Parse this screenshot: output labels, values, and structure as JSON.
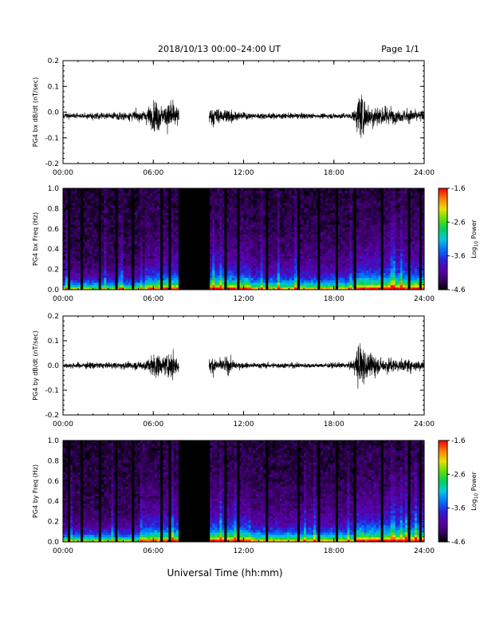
{
  "header": {
    "title": "2018/10/13  00:00–24:00 UT",
    "page": "Page 1/1"
  },
  "footer": {
    "xlabel": "Universal Time (hh:mm)"
  },
  "colorbar": {
    "label": "Log10 Power",
    "label_base": "Log",
    "label_sub": "10",
    "label_rest": " Power",
    "ticks": [
      "-1.6",
      "-2.6",
      "-3.6",
      "-4.6"
    ],
    "tick_values": [
      -1.6,
      -2.6,
      -3.6,
      -4.6
    ],
    "range": [
      -4.6,
      -1.6
    ],
    "colormap": [
      "#000000",
      "#3a0066",
      "#5a00a8",
      "#2a20d8",
      "#0070ff",
      "#00c8e0",
      "#00d060",
      "#60e000",
      "#e8e000",
      "#ff8000",
      "#ff0000"
    ]
  },
  "chart_data": [
    {
      "type": "line",
      "panel": "time-series",
      "ylabel": "PG4 bx dB/dt (nT/sec)",
      "xlim": [
        0,
        24
      ],
      "ylim": [
        -0.2,
        0.2
      ],
      "xticks": [
        "00:00",
        "06:00",
        "12:00",
        "18:00",
        "24:00"
      ],
      "xtick_values": [
        0,
        6,
        12,
        18,
        24
      ],
      "yticks": [
        "0.2",
        "0.1",
        "0.0",
        "-0.1",
        "-0.2"
      ],
      "ytick_values": [
        0.2,
        0.1,
        0.0,
        -0.1,
        -0.2
      ],
      "data_gap_hours": [
        7.7,
        9.7
      ],
      "envelope": {
        "x": [
          0,
          1,
          2,
          3,
          4,
          5,
          5.5,
          6,
          6.3,
          6.6,
          7,
          7.3,
          7.6,
          9.7,
          10,
          10.5,
          11,
          11.5,
          12,
          13,
          14,
          15,
          16,
          17,
          18,
          19,
          19.4,
          19.7,
          20,
          20.3,
          20.7,
          21,
          21.5,
          22,
          22.5,
          23,
          23.5,
          24
        ],
        "y": [
          0.02,
          0.02,
          0.025,
          0.02,
          0.03,
          0.035,
          0.05,
          0.09,
          0.12,
          0.06,
          0.1,
          0.11,
          0.06,
          0.05,
          0.07,
          0.04,
          0.06,
          0.03,
          0.025,
          0.02,
          0.02,
          0.02,
          0.02,
          0.015,
          0.02,
          0.02,
          0.04,
          0.2,
          0.13,
          0.08,
          0.1,
          0.06,
          0.07,
          0.05,
          0.04,
          0.05,
          0.04,
          0.04
        ]
      },
      "baseline": -0.015
    },
    {
      "type": "heatmap",
      "panel": "spectrogram",
      "ylabel": "PG4 bx Freq (Hz)",
      "xlim": [
        0,
        24
      ],
      "ylim": [
        0.0,
        1.0
      ],
      "xticks": [
        "00:00",
        "06:00",
        "12:00",
        "18:00",
        "24:00"
      ],
      "xtick_values": [
        0,
        6,
        12,
        18,
        24
      ],
      "yticks": [
        "1.0",
        "0.8",
        "0.6",
        "0.4",
        "0.2",
        "0.0"
      ],
      "ytick_values": [
        1.0,
        0.8,
        0.6,
        0.4,
        0.2,
        0.0
      ],
      "data_gap_hours": [
        7.7,
        9.7
      ],
      "vertical_gaps_hours": [
        0.4,
        1.25,
        2.45,
        3.55,
        4.65,
        6.55,
        7.1,
        10.8,
        11.65,
        13.55,
        15.65,
        17.0,
        18.2,
        19.4,
        21.2,
        23.0,
        23.75
      ],
      "color_range": [
        -4.6,
        -1.6
      ]
    },
    {
      "type": "line",
      "panel": "time-series",
      "ylabel": "PG4 by dB/dt (nT/sec)",
      "xlim": [
        0,
        24
      ],
      "ylim": [
        -0.2,
        0.2
      ],
      "xticks": [
        "00:00",
        "06:00",
        "12:00",
        "18:00",
        "24:00"
      ],
      "xtick_values": [
        0,
        6,
        12,
        18,
        24
      ],
      "yticks": [
        "0.2",
        "0.1",
        "0.0",
        "-0.1",
        "-0.2"
      ],
      "ytick_values": [
        0.2,
        0.1,
        0.0,
        -0.1,
        -0.2
      ],
      "data_gap_hours": [
        7.7,
        9.7
      ],
      "envelope": {
        "x": [
          0,
          1,
          2,
          3,
          4,
          5,
          5.5,
          6,
          6.3,
          6.6,
          7,
          7.3,
          7.6,
          9.7,
          10,
          10.5,
          11,
          11.5,
          12,
          13,
          14,
          15,
          16,
          17,
          18,
          19,
          19.4,
          19.7,
          20,
          20.3,
          20.7,
          21,
          21.5,
          22,
          22.5,
          23,
          23.5,
          24
        ],
        "y": [
          0.02,
          0.02,
          0.025,
          0.02,
          0.025,
          0.03,
          0.04,
          0.08,
          0.1,
          0.05,
          0.09,
          0.1,
          0.05,
          0.05,
          0.07,
          0.04,
          0.06,
          0.03,
          0.02,
          0.02,
          0.02,
          0.02,
          0.02,
          0.015,
          0.02,
          0.02,
          0.06,
          0.2,
          0.14,
          0.07,
          0.09,
          0.05,
          0.06,
          0.05,
          0.04,
          0.05,
          0.04,
          0.04
        ]
      },
      "baseline": 0.0
    },
    {
      "type": "heatmap",
      "panel": "spectrogram",
      "ylabel": "PG4 by Freq (Hz)",
      "xlim": [
        0,
        24
      ],
      "ylim": [
        0.0,
        1.0
      ],
      "xticks": [
        "00:00",
        "06:00",
        "12:00",
        "18:00",
        "24:00"
      ],
      "xtick_values": [
        0,
        6,
        12,
        18,
        24
      ],
      "yticks": [
        "1.0",
        "0.8",
        "0.6",
        "0.4",
        "0.2",
        "0.0"
      ],
      "ytick_values": [
        1.0,
        0.8,
        0.6,
        0.4,
        0.2,
        0.0
      ],
      "data_gap_hours": [
        7.7,
        9.7
      ],
      "vertical_gaps_hours": [
        0.4,
        1.25,
        2.45,
        3.55,
        4.65,
        6.55,
        7.1,
        10.8,
        11.65,
        13.55,
        15.65,
        17.0,
        18.2,
        19.4,
        21.2,
        23.0,
        23.75
      ],
      "color_range": [
        -4.6,
        -1.6
      ]
    }
  ]
}
